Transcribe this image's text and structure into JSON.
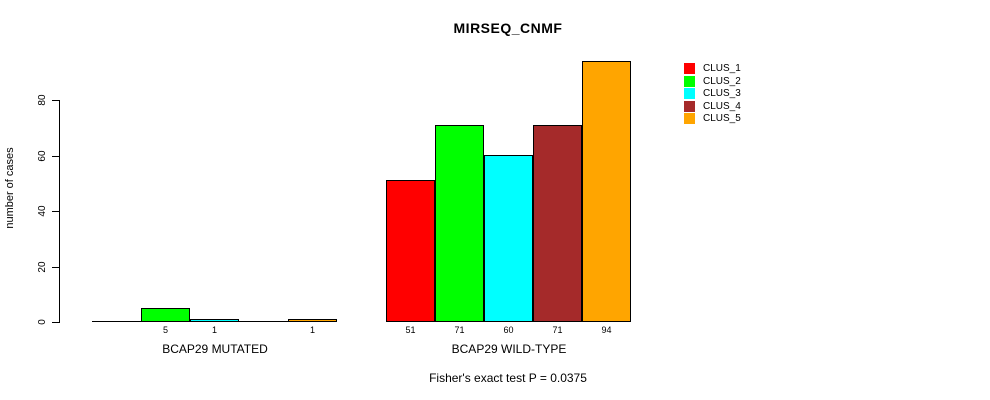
{
  "chart_data": {
    "type": "bar",
    "title": "MIRSEQ_CNMF",
    "ylabel": "number of cases",
    "xlabel": "",
    "yticks": [
      0,
      20,
      40,
      60,
      80
    ],
    "ylim": [
      0,
      95
    ],
    "grid": false,
    "legend_position": "right",
    "categories": [
      "BCAP29 MUTATED",
      "BCAP29 WILD-TYPE"
    ],
    "series": [
      {
        "name": "CLUS_1",
        "color": "#ff0000",
        "values": [
          0,
          51
        ]
      },
      {
        "name": "CLUS_2",
        "color": "#00ff00",
        "values": [
          5,
          71
        ]
      },
      {
        "name": "CLUS_3",
        "color": "#00ffff",
        "values": [
          1,
          60
        ]
      },
      {
        "name": "CLUS_4",
        "color": "#a52a2a",
        "values": [
          0,
          71
        ]
      },
      {
        "name": "CLUS_5",
        "color": "#ffa500",
        "values": [
          1,
          94
        ]
      }
    ],
    "bar_value_labels": [
      [
        "",
        "5",
        "1",
        "",
        "1"
      ],
      [
        "51",
        "71",
        "60",
        "71",
        "94"
      ]
    ],
    "annotation": "Fisher's exact test P = 0.0375"
  }
}
